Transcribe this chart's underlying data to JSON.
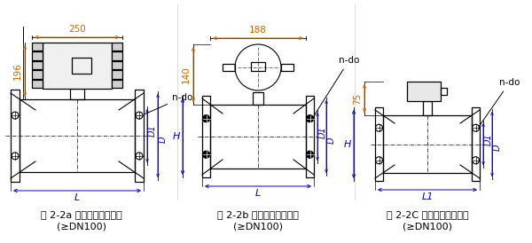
{
  "bg_color": "#ffffff",
  "line_color": "#000000",
  "orange_color": "#cc6600",
  "blue_color": "#0000cc",
  "fig1": {
    "caption1": "图 2-2a 一体型电磁流量计",
    "caption2": "(≥DN100)",
    "dim250": "250",
    "dim196": "196",
    "h_label": "H",
    "d1_label": "D1",
    "d_label": "D",
    "l_label": "L",
    "ndo_label": "n-do"
  },
  "fig2": {
    "caption1": "图 2-2b 一体型电磁流量计",
    "caption2": "(≥DN100)",
    "dim188": "188",
    "dim140": "140",
    "h_label": "H",
    "d1_label": "D1",
    "d_label": "D",
    "l_label": "L",
    "ndo_label": "n-do"
  },
  "fig3": {
    "caption1": "图 2-2C 分离型电磁流量计",
    "caption2": "(≥DN100)",
    "dim75": "75",
    "h_label": "H",
    "d1_label": "D1",
    "d_label": "D",
    "l_label": "L1",
    "ndo_label": "n-do"
  }
}
